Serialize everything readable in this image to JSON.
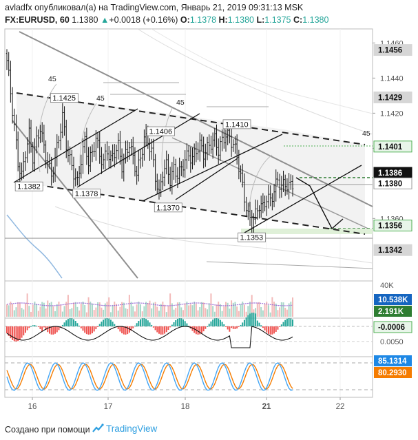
{
  "header": {
    "line1": "avladfx опубликовал(а) на TradingView.com, Январь 21, 2019 09:31:13 MSK",
    "symbol": "FX:EURUSD, 60",
    "last": "1.1380",
    "change_arrow": "▲",
    "change": "+0.0018 (+0.16%)",
    "o_label": "O:",
    "o_value": "1.1378",
    "h_label": "H:",
    "h_value": "1.1380",
    "l_label": "L:",
    "l_value": "1.1375",
    "c_label": "C:",
    "c_value": "1.1380"
  },
  "footer": {
    "created_text": "Создано при помощи",
    "logo_text": "TradingView"
  },
  "colors": {
    "up": "#26a69a",
    "down": "#ef5350",
    "price_line": "#1a1a1a",
    "green_level": "#4caf50",
    "macd_blue": "#1565c0",
    "stoch_k": "#42a5f5",
    "stoch_d": "#f57c00",
    "volume_ma": "#9c6fd6"
  },
  "chart_data": {
    "type": "candlestick",
    "symbol": "FX:EURUSD",
    "interval": "60",
    "x_ticks": [
      "16",
      "17",
      "18",
      "21",
      "22"
    ],
    "price_ticks": [
      "1.1460",
      "1.1440",
      "1.1420",
      "1.1400",
      "1.1360"
    ],
    "ylim": [
      1.1326,
      1.1468
    ],
    "close_path": [
      [
        0,
        1.145
      ],
      [
        2,
        1.1432
      ],
      [
        4,
        1.1412
      ],
      [
        6,
        1.1392
      ],
      [
        8,
        1.1384
      ],
      [
        10,
        1.1398
      ],
      [
        12,
        1.1408
      ],
      [
        14,
        1.1395
      ],
      [
        16,
        1.1404
      ],
      [
        18,
        1.1412
      ],
      [
        20,
        1.14
      ],
      [
        22,
        1.1392
      ],
      [
        24,
        1.1384
      ],
      [
        26,
        1.1394
      ],
      [
        28,
        1.1406
      ],
      [
        30,
        1.1418
      ],
      [
        32,
        1.1402
      ],
      [
        34,
        1.1393
      ],
      [
        36,
        1.1386
      ],
      [
        38,
        1.138
      ],
      [
        40,
        1.1394
      ],
      [
        42,
        1.1404
      ],
      [
        44,
        1.1392
      ],
      [
        46,
        1.1397
      ],
      [
        48,
        1.1406
      ],
      [
        50,
        1.1396
      ],
      [
        52,
        1.1392
      ],
      [
        54,
        1.1399
      ],
      [
        56,
        1.1393
      ],
      [
        58,
        1.1398
      ],
      [
        60,
        1.1401
      ],
      [
        62,
        1.139
      ],
      [
        64,
        1.1396
      ],
      [
        66,
        1.1403
      ],
      [
        68,
        1.1394
      ],
      [
        70,
        1.1386
      ],
      [
        72,
        1.1394
      ],
      [
        74,
        1.1406
      ],
      [
        76,
        1.1404
      ],
      [
        78,
        1.1398
      ],
      [
        80,
        1.1384
      ],
      [
        82,
        1.1373
      ],
      [
        84,
        1.1387
      ],
      [
        86,
        1.139
      ],
      [
        88,
        1.1382
      ],
      [
        90,
        1.1388
      ],
      [
        92,
        1.1385
      ],
      [
        94,
        1.1388
      ],
      [
        96,
        1.1394
      ],
      [
        98,
        1.1396
      ],
      [
        100,
        1.1394
      ],
      [
        102,
        1.1399
      ],
      [
        104,
        1.1402
      ],
      [
        106,
        1.1397
      ],
      [
        108,
        1.14
      ],
      [
        110,
        1.1403
      ],
      [
        112,
        1.1405
      ],
      [
        114,
        1.1399
      ],
      [
        116,
        1.1404
      ],
      [
        118,
        1.1408
      ],
      [
        120,
        1.1406
      ],
      [
        122,
        1.1402
      ],
      [
        124,
        1.1396
      ],
      [
        126,
        1.1384
      ],
      [
        128,
        1.1372
      ],
      [
        130,
        1.1361
      ],
      [
        132,
        1.1358
      ],
      [
        134,
        1.1362
      ],
      [
        136,
        1.1368
      ],
      [
        138,
        1.1366
      ],
      [
        140,
        1.1372
      ],
      [
        142,
        1.137
      ],
      [
        144,
        1.1376
      ],
      [
        146,
        1.1382
      ],
      [
        148,
        1.1378
      ],
      [
        150,
        1.138
      ],
      [
        152,
        1.1378
      ],
      [
        154,
        1.138
      ]
    ],
    "bar_count": 155,
    "annotations": [
      {
        "label": "1.1425",
        "bar": 25,
        "price": 1.1425
      },
      {
        "label": "1.1406",
        "bar": 77,
        "price": 1.1406
      },
      {
        "label": "1.1410",
        "bar": 118,
        "price": 1.141
      },
      {
        "label": "1.1382",
        "bar": 6,
        "price": 1.1382
      },
      {
        "label": "1.1378",
        "bar": 37,
        "price": 1.1378
      },
      {
        "label": "1.1370",
        "bar": 81,
        "price": 1.137
      },
      {
        "label": "1.1353",
        "bar": 126,
        "price": 1.1353
      }
    ],
    "angle_labels": [
      "45",
      "45",
      "45",
      "45"
    ],
    "price_badges": [
      {
        "label": "1.1456",
        "price": 1.1456,
        "style": "gray"
      },
      {
        "label": "1.1429",
        "price": 1.1429,
        "style": "gray"
      },
      {
        "label": "1.1401",
        "price": 1.1401,
        "style": "green-outline"
      },
      {
        "label": "1.1386",
        "price": 1.1386,
        "style": "black"
      },
      {
        "label": "1.1380",
        "price": 1.138,
        "style": "white-outline"
      },
      {
        "label": "1.1356",
        "price": 1.1356,
        "style": "green-outline"
      },
      {
        "label": "1.1342",
        "price": 1.1342,
        "style": "gray"
      }
    ],
    "volume": {
      "ticks": [
        "40K"
      ],
      "badges": [
        {
          "label": "10.538K",
          "style": "blue"
        },
        {
          "label": "2.191K",
          "style": "green"
        }
      ]
    },
    "macd": {
      "ticks": [
        "0.0050"
      ],
      "badges": [
        {
          "label": "-0.0006",
          "style": "green"
        }
      ]
    },
    "stochastic": {
      "badges": [
        {
          "label": "85.1314",
          "style": "blue"
        },
        {
          "label": "80.2930",
          "style": "orange"
        }
      ]
    }
  }
}
